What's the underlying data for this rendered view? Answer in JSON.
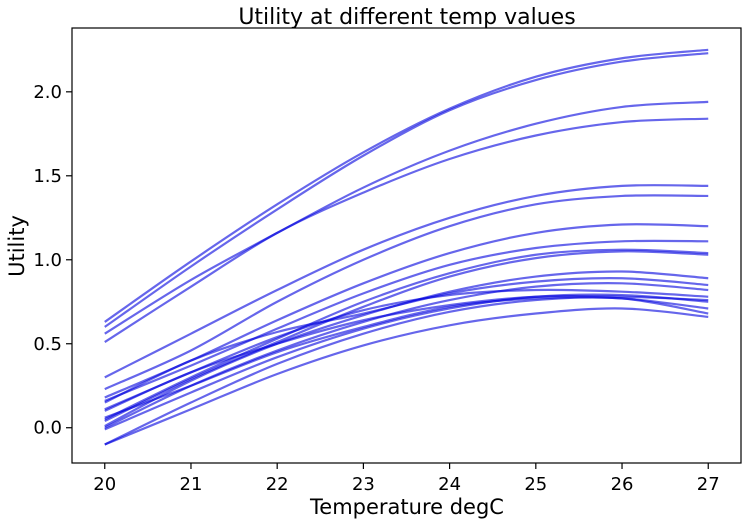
{
  "chart_data": {
    "type": "line",
    "title": "Utility at different temp values",
    "xlabel": "Temperature degC",
    "ylabel": "Utility",
    "xlim": [
      19.62,
      27.38
    ],
    "ylim": [
      -0.21,
      2.38
    ],
    "xticks": [
      20,
      21,
      22,
      23,
      24,
      25,
      26,
      27
    ],
    "yticks": [
      0.0,
      0.5,
      1.0,
      1.5,
      2.0
    ],
    "ytick_labels": [
      "0.0",
      "0.5",
      "1.0",
      "1.5",
      "2.0"
    ],
    "grid": false,
    "line_color": "#0000dd",
    "line_opacity": 0.6,
    "x": [
      20,
      21,
      22,
      23,
      24,
      25,
      26,
      27
    ],
    "series": [
      {
        "values": [
          0.63,
          0.99,
          1.33,
          1.64,
          1.9,
          2.09,
          2.2,
          2.25
        ]
      },
      {
        "values": [
          0.6,
          0.96,
          1.3,
          1.62,
          1.89,
          2.07,
          2.18,
          2.23
        ]
      },
      {
        "values": [
          0.56,
          0.88,
          1.16,
          1.43,
          1.65,
          1.81,
          1.91,
          1.94
        ]
      },
      {
        "values": [
          0.51,
          0.84,
          1.16,
          1.4,
          1.6,
          1.74,
          1.82,
          1.84
        ]
      },
      {
        "values": [
          0.3,
          0.56,
          0.82,
          1.06,
          1.25,
          1.38,
          1.44,
          1.44
        ]
      },
      {
        "values": [
          0.23,
          0.46,
          0.75,
          1.0,
          1.2,
          1.33,
          1.38,
          1.38
        ]
      },
      {
        "values": [
          0.18,
          0.4,
          0.64,
          0.86,
          1.04,
          1.16,
          1.21,
          1.2
        ]
      },
      {
        "values": [
          0.16,
          0.37,
          0.59,
          0.8,
          0.97,
          1.07,
          1.11,
          1.11
        ]
      },
      {
        "values": [
          0.05,
          0.3,
          0.53,
          0.75,
          0.92,
          1.03,
          1.06,
          1.04
        ]
      },
      {
        "values": [
          0.04,
          0.29,
          0.51,
          0.72,
          0.9,
          1.01,
          1.05,
          1.03
        ]
      },
      {
        "values": [
          0.01,
          0.28,
          0.5,
          0.67,
          0.81,
          0.9,
          0.93,
          0.89
        ]
      },
      {
        "values": [
          0.15,
          0.4,
          0.57,
          0.68,
          0.8,
          0.87,
          0.89,
          0.85
        ]
      },
      {
        "values": [
          0.0,
          0.25,
          0.46,
          0.63,
          0.76,
          0.84,
          0.86,
          0.82
        ]
      },
      {
        "values": [
          0.11,
          0.33,
          0.54,
          0.7,
          0.79,
          0.82,
          0.81,
          0.78
        ]
      },
      {
        "values": [
          0.1,
          0.33,
          0.5,
          0.64,
          0.73,
          0.78,
          0.78,
          0.76
        ]
      },
      {
        "values": [
          -0.01,
          0.21,
          0.42,
          0.59,
          0.71,
          0.78,
          0.79,
          0.75
        ]
      },
      {
        "values": [
          0.06,
          0.25,
          0.45,
          0.6,
          0.72,
          0.77,
          0.77,
          0.71
        ]
      },
      {
        "values": [
          -0.1,
          0.15,
          0.38,
          0.56,
          0.69,
          0.76,
          0.77,
          0.68
        ]
      },
      {
        "values": [
          -0.1,
          0.11,
          0.32,
          0.49,
          0.61,
          0.68,
          0.71,
          0.66
        ]
      }
    ]
  }
}
